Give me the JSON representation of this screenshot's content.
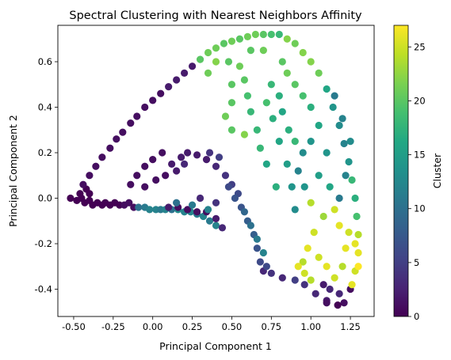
{
  "chart_data": {
    "type": "scatter",
    "title": "Spectral Clustering with Nearest Neighbors Affinity",
    "xlabel": "Principal Component 1",
    "ylabel": "Principal Component 2",
    "xlim": [
      -0.6,
      1.4
    ],
    "ylim": [
      -0.52,
      0.76
    ],
    "xticks": [
      "-0.50",
      "-0.25",
      "0.00",
      "0.25",
      "0.50",
      "0.75",
      "1.00",
      "1.25"
    ],
    "xtick_values": [
      -0.5,
      -0.25,
      0,
      0.25,
      0.5,
      0.75,
      1.0,
      1.25
    ],
    "yticks": [
      "-0.4",
      "-0.2",
      "0.0",
      "0.2",
      "0.4",
      "0.6"
    ],
    "ytick_values": [
      -0.4,
      -0.2,
      0.0,
      0.2,
      0.4,
      0.6
    ],
    "grid": false,
    "colormap": "viridis",
    "colorbar": {
      "label": "Cluster",
      "range": [
        0,
        27
      ],
      "ticks": [
        "0",
        "5",
        "10",
        "15",
        "20",
        "25"
      ],
      "tick_values": [
        0,
        5,
        10,
        15,
        20,
        25
      ]
    },
    "points": [
      [
        -0.52,
        0.0,
        0
      ],
      [
        -0.48,
        -0.01,
        0
      ],
      [
        -0.45,
        0.0,
        0
      ],
      [
        -0.43,
        -0.02,
        0
      ],
      [
        -0.4,
        -0.01,
        0
      ],
      [
        -0.38,
        -0.03,
        0
      ],
      [
        -0.35,
        -0.02,
        0
      ],
      [
        -0.32,
        -0.03,
        0
      ],
      [
        -0.3,
        -0.02,
        0
      ],
      [
        -0.27,
        -0.03,
        0
      ],
      [
        -0.24,
        -0.02,
        0
      ],
      [
        -0.21,
        -0.03,
        0
      ],
      [
        -0.18,
        -0.03,
        1
      ],
      [
        -0.15,
        -0.02,
        1
      ],
      [
        -0.12,
        -0.04,
        1
      ],
      [
        -0.46,
        0.02,
        0
      ],
      [
        -0.42,
        0.04,
        0
      ],
      [
        -0.4,
        0.02,
        0
      ],
      [
        -0.09,
        -0.04,
        10
      ],
      [
        -0.05,
        -0.04,
        11
      ],
      [
        -0.02,
        -0.05,
        12
      ],
      [
        0.02,
        -0.05,
        12
      ],
      [
        0.05,
        -0.05,
        11
      ],
      [
        0.08,
        -0.05,
        12
      ],
      [
        0.12,
        -0.05,
        10
      ],
      [
        0.16,
        -0.05,
        13
      ],
      [
        0.2,
        -0.06,
        12
      ],
      [
        0.24,
        -0.06,
        12
      ],
      [
        0.28,
        -0.07,
        11
      ],
      [
        0.32,
        -0.08,
        12
      ],
      [
        0.36,
        -0.1,
        11
      ],
      [
        0.4,
        -0.12,
        12
      ],
      [
        0.1,
        -0.04,
        2
      ],
      [
        0.16,
        -0.04,
        1
      ],
      [
        0.22,
        -0.05,
        1
      ],
      [
        0.28,
        -0.06,
        1
      ],
      [
        0.34,
        -0.06,
        1
      ],
      [
        0.4,
        -0.09,
        2
      ],
      [
        0.44,
        -0.13,
        3
      ],
      [
        -0.44,
        0.06,
        1
      ],
      [
        -0.4,
        0.1,
        1
      ],
      [
        -0.36,
        0.14,
        1
      ],
      [
        -0.32,
        0.18,
        1
      ],
      [
        -0.27,
        0.22,
        1
      ],
      [
        -0.23,
        0.26,
        1
      ],
      [
        -0.19,
        0.29,
        1
      ],
      [
        -0.14,
        0.33,
        1
      ],
      [
        -0.1,
        0.36,
        1
      ],
      [
        -0.05,
        0.4,
        1
      ],
      [
        0.0,
        0.43,
        1
      ],
      [
        0.05,
        0.46,
        1
      ],
      [
        0.1,
        0.49,
        2
      ],
      [
        0.15,
        0.52,
        2
      ],
      [
        0.2,
        0.55,
        2
      ],
      [
        0.25,
        0.58,
        2
      ],
      [
        0.3,
        0.61,
        20
      ],
      [
        0.35,
        0.64,
        21
      ],
      [
        0.4,
        0.66,
        21
      ],
      [
        0.45,
        0.68,
        20
      ],
      [
        0.5,
        0.69,
        21
      ],
      [
        0.55,
        0.7,
        20
      ],
      [
        0.6,
        0.71,
        21
      ],
      [
        0.65,
        0.72,
        21
      ],
      [
        0.7,
        0.72,
        20
      ],
      [
        0.75,
        0.72,
        19
      ],
      [
        0.8,
        0.72,
        18
      ],
      [
        0.85,
        0.7,
        22
      ],
      [
        0.9,
        0.68,
        21
      ],
      [
        0.95,
        0.64,
        22
      ],
      [
        1.0,
        0.6,
        22
      ],
      [
        1.05,
        0.55,
        21
      ],
      [
        1.1,
        0.48,
        16
      ],
      [
        1.14,
        0.4,
        14
      ],
      [
        1.18,
        0.32,
        13
      ],
      [
        1.21,
        0.24,
        12
      ],
      [
        1.24,
        0.16,
        14
      ],
      [
        1.26,
        0.08,
        18
      ],
      [
        1.28,
        0.0,
        17
      ],
      [
        1.29,
        -0.08,
        19
      ],
      [
        1.3,
        -0.16,
        24
      ],
      [
        1.3,
        -0.24,
        26
      ],
      [
        1.28,
        -0.32,
        25
      ],
      [
        1.25,
        -0.4,
        1
      ],
      [
        1.21,
        -0.46,
        1
      ],
      [
        1.17,
        -0.47,
        0
      ],
      [
        1.1,
        -0.45,
        2
      ],
      [
        1.03,
        -0.42,
        3
      ],
      [
        0.96,
        -0.38,
        4
      ],
      [
        0.9,
        -0.36,
        5
      ],
      [
        0.82,
        -0.35,
        3
      ],
      [
        0.75,
        -0.33,
        4
      ],
      [
        0.7,
        -0.32,
        3
      ],
      [
        0.68,
        -0.28,
        6
      ],
      [
        0.66,
        -0.22,
        7
      ],
      [
        0.64,
        -0.16,
        8
      ],
      [
        0.6,
        -0.1,
        8
      ],
      [
        0.56,
        -0.04,
        7
      ],
      [
        0.54,
        0.02,
        6
      ],
      [
        0.5,
        0.06,
        5
      ],
      [
        0.46,
        0.1,
        4
      ],
      [
        0.4,
        0.14,
        3
      ],
      [
        0.34,
        0.17,
        2
      ],
      [
        0.28,
        0.19,
        2
      ],
      [
        0.22,
        0.2,
        2
      ],
      [
        0.18,
        0.18,
        2
      ],
      [
        0.12,
        0.15,
        2
      ],
      [
        -0.1,
        0.1,
        1
      ],
      [
        -0.14,
        0.06,
        1
      ],
      [
        -0.05,
        0.14,
        1
      ],
      [
        0.0,
        0.17,
        1
      ],
      [
        0.06,
        0.2,
        1
      ],
      [
        0.36,
        0.2,
        4
      ],
      [
        0.42,
        0.18,
        5
      ],
      [
        0.48,
        0.05,
        6
      ],
      [
        0.52,
        0.0,
        7
      ],
      [
        0.58,
        -0.06,
        9
      ],
      [
        0.62,
        -0.12,
        10
      ],
      [
        0.66,
        -0.18,
        11
      ],
      [
        0.7,
        -0.24,
        12
      ],
      [
        0.72,
        -0.3,
        6
      ],
      [
        -0.05,
        0.05,
        1
      ],
      [
        0.02,
        0.08,
        1
      ],
      [
        0.08,
        0.1,
        1
      ],
      [
        0.15,
        0.12,
        2
      ],
      [
        0.2,
        0.15,
        3
      ],
      [
        0.48,
        0.6,
        20
      ],
      [
        0.55,
        0.58,
        21
      ],
      [
        0.58,
        0.52,
        20
      ],
      [
        0.6,
        0.45,
        19
      ],
      [
        0.62,
        0.38,
        18
      ],
      [
        0.5,
        0.42,
        20
      ],
      [
        0.46,
        0.36,
        21
      ],
      [
        0.5,
        0.3,
        20
      ],
      [
        0.66,
        0.3,
        18
      ],
      [
        0.72,
        0.42,
        19
      ],
      [
        0.75,
        0.5,
        18
      ],
      [
        0.8,
        0.45,
        17
      ],
      [
        0.82,
        0.38,
        16
      ],
      [
        0.86,
        0.3,
        17
      ],
      [
        0.9,
        0.25,
        18
      ],
      [
        0.85,
        0.55,
        21
      ],
      [
        0.9,
        0.5,
        20
      ],
      [
        0.95,
        0.45,
        19
      ],
      [
        1.0,
        0.4,
        17
      ],
      [
        1.05,
        0.32,
        16
      ],
      [
        1.0,
        0.25,
        14
      ],
      [
        0.95,
        0.2,
        13
      ],
      [
        0.92,
        0.12,
        12
      ],
      [
        0.96,
        0.05,
        14
      ],
      [
        1.0,
        -0.02,
        24
      ],
      [
        1.05,
        0.1,
        15
      ],
      [
        1.1,
        0.2,
        14
      ],
      [
        1.12,
        0.05,
        16
      ],
      [
        1.15,
        -0.05,
        25
      ],
      [
        1.18,
        -0.12,
        26
      ],
      [
        1.08,
        -0.08,
        23
      ],
      [
        1.02,
        -0.15,
        25
      ],
      [
        0.98,
        -0.22,
        26
      ],
      [
        0.95,
        -0.28,
        24
      ],
      [
        1.05,
        -0.26,
        25
      ],
      [
        1.1,
        -0.3,
        26
      ],
      [
        1.15,
        -0.35,
        25
      ],
      [
        1.2,
        -0.3,
        24
      ],
      [
        1.22,
        -0.22,
        26
      ],
      [
        1.24,
        -0.15,
        25
      ],
      [
        0.92,
        -0.3,
        26
      ],
      [
        0.96,
        -0.33,
        25
      ],
      [
        1.0,
        -0.36,
        24
      ],
      [
        1.08,
        -0.38,
        2
      ],
      [
        1.12,
        -0.4,
        3
      ],
      [
        0.78,
        0.05,
        17
      ],
      [
        0.8,
        0.25,
        16
      ],
      [
        0.85,
        0.15,
        15
      ],
      [
        0.88,
        0.05,
        14
      ],
      [
        0.9,
        -0.05,
        13
      ],
      [
        1.18,
        0.0,
        11
      ],
      [
        1.22,
        0.1,
        12
      ],
      [
        1.25,
        0.25,
        13
      ],
      [
        1.2,
        0.35,
        12
      ],
      [
        1.15,
        0.45,
        11
      ],
      [
        0.68,
        0.22,
        18
      ],
      [
        0.72,
        0.15,
        16
      ],
      [
        0.76,
        0.35,
        17
      ],
      [
        0.82,
        0.6,
        20
      ],
      [
        0.7,
        0.65,
        21
      ],
      [
        0.62,
        0.65,
        20
      ],
      [
        0.4,
        0.6,
        22
      ],
      [
        0.35,
        0.55,
        21
      ],
      [
        0.58,
        0.28,
        22
      ],
      [
        0.5,
        0.5,
        20
      ],
      [
        1.28,
        -0.2,
        26
      ],
      [
        1.3,
        -0.3,
        27
      ],
      [
        1.26,
        -0.38,
        26
      ],
      [
        1.18,
        -0.42,
        3
      ],
      [
        1.1,
        -0.46,
        1
      ],
      [
        0.15,
        -0.02,
        10
      ],
      [
        0.25,
        -0.03,
        11
      ],
      [
        0.35,
        -0.05,
        12
      ],
      [
        0.3,
        0.0,
        3
      ],
      [
        0.4,
        -0.02,
        4
      ]
    ]
  }
}
